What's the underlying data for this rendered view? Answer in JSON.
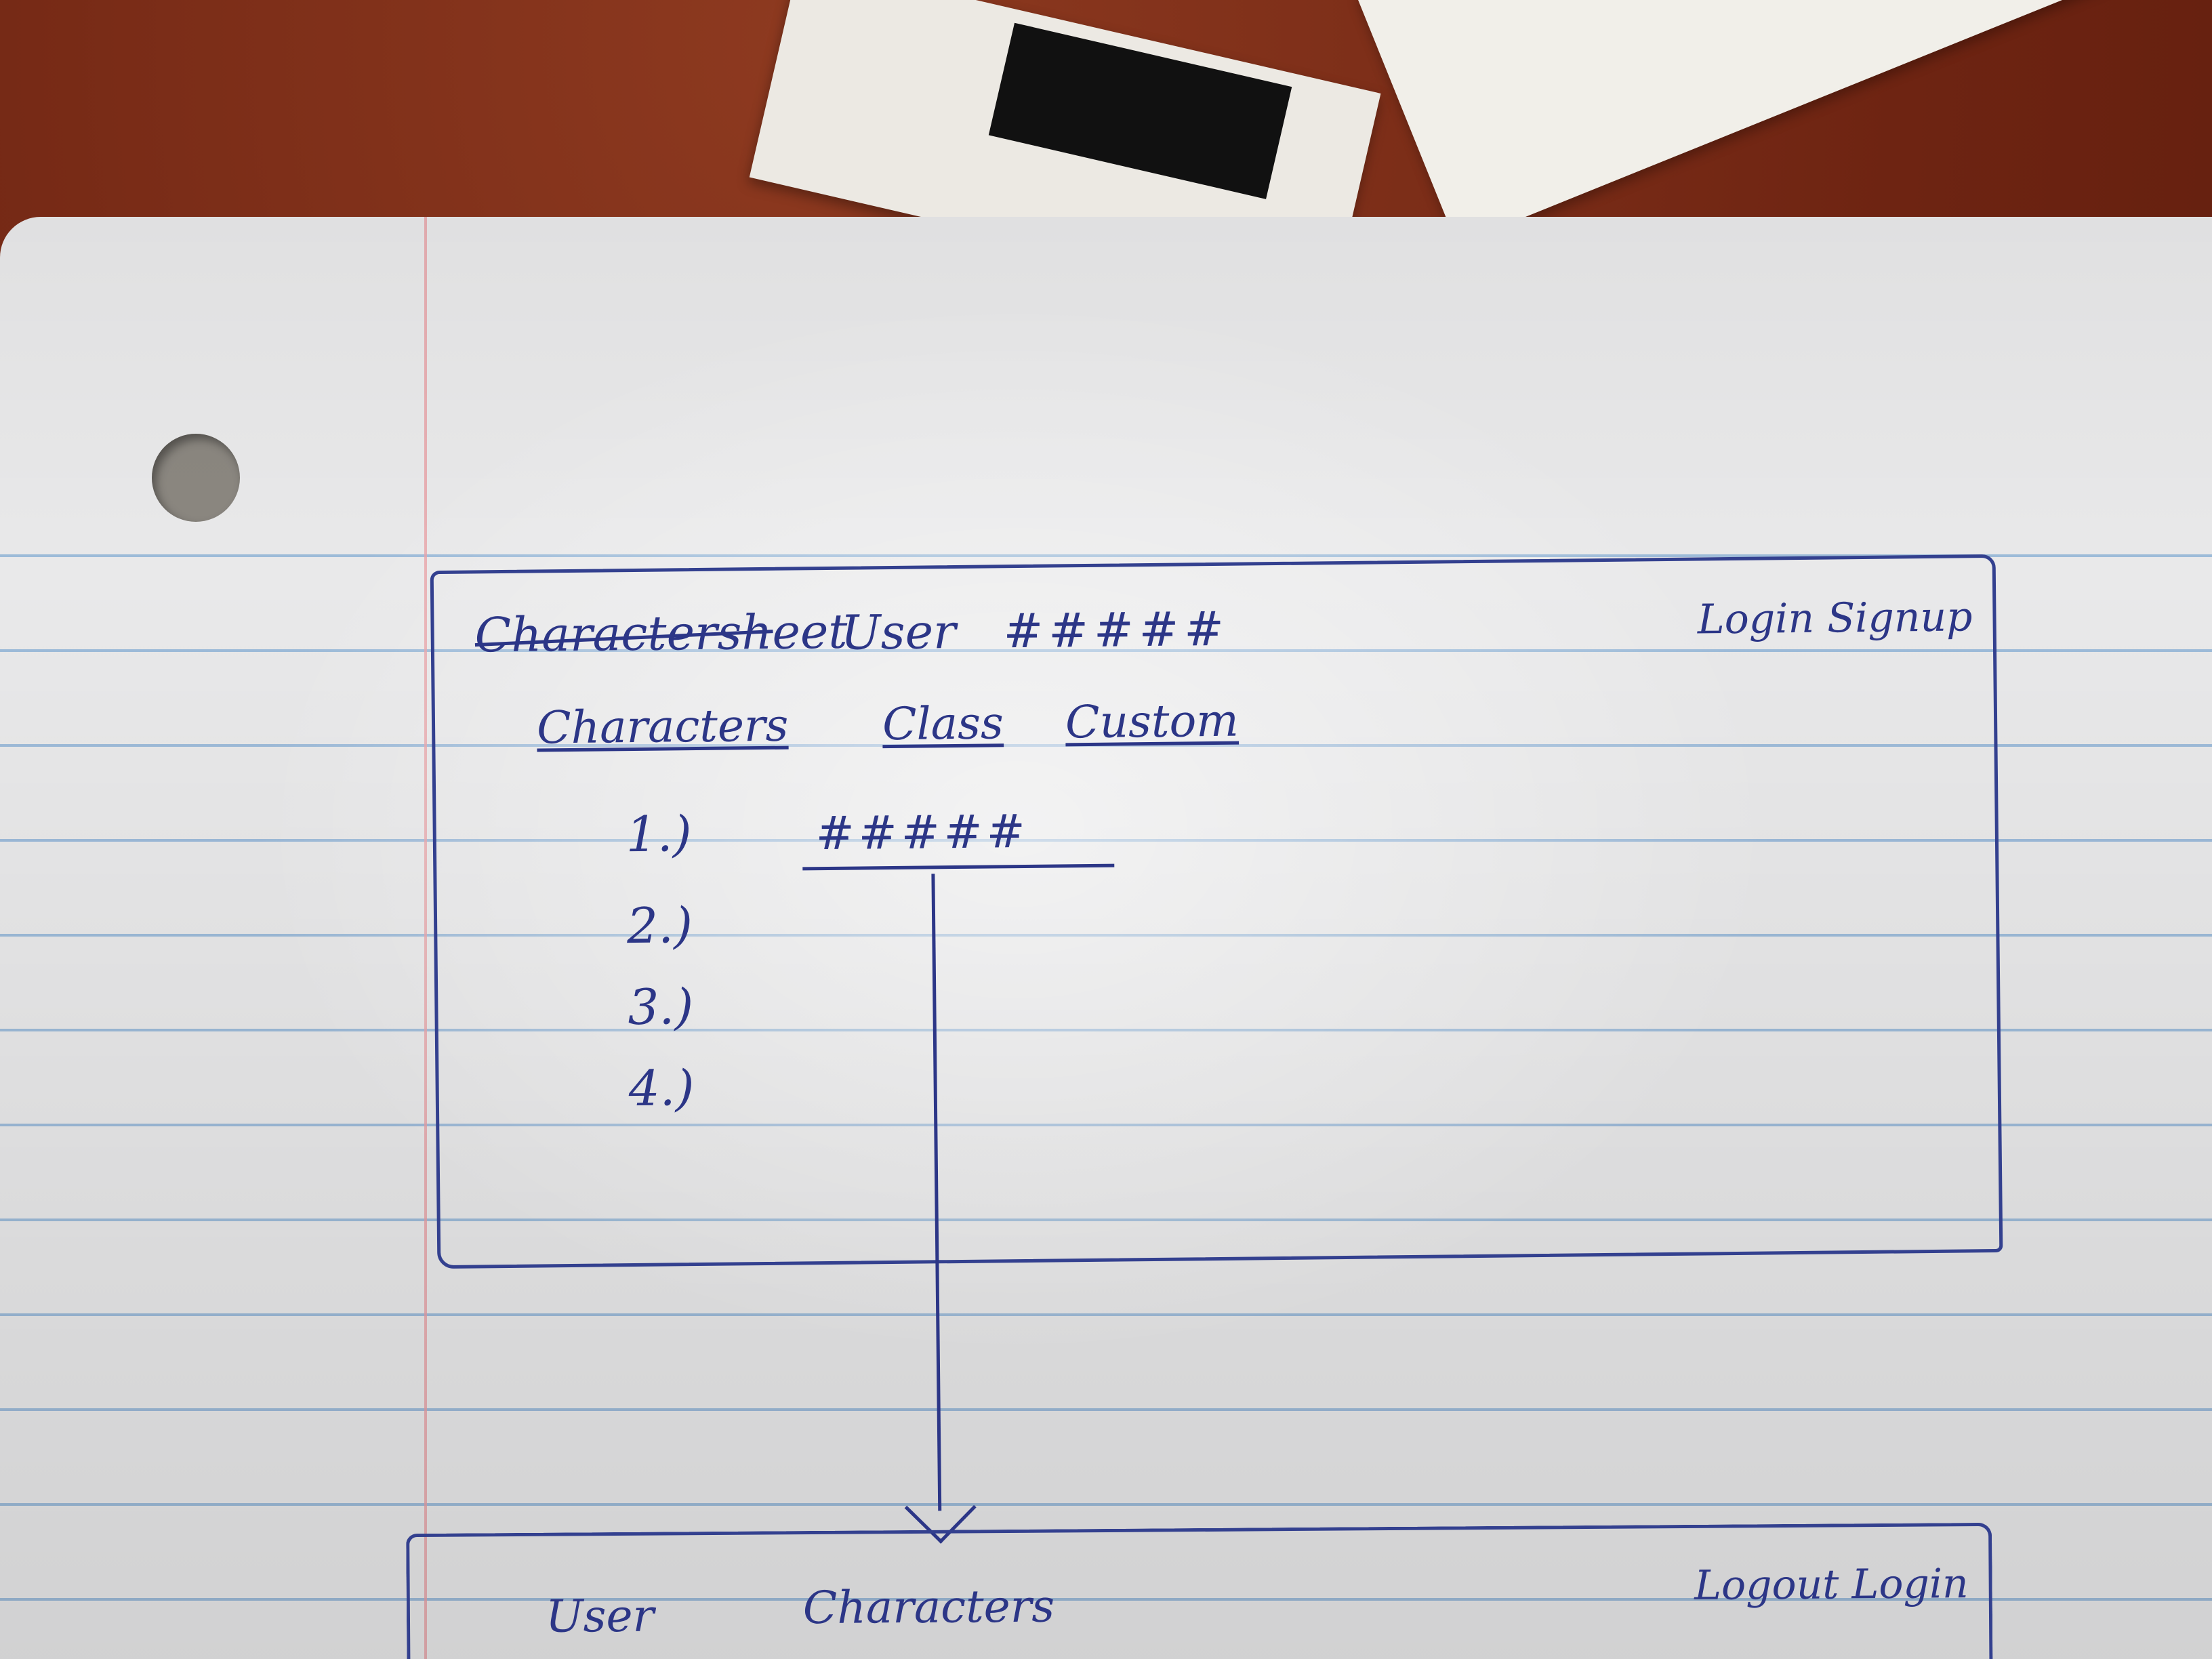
{
  "wireframe_main": {
    "brand": "Charactersheet",
    "user_label": "User",
    "user_id": "#####",
    "auth_links": "Login Signup",
    "nav": [
      "Characters",
      "Class",
      "Custom"
    ],
    "list_numbers": [
      "1.)",
      "2.)",
      "3.)",
      "4.)"
    ],
    "row_value": "#####"
  },
  "wireframe_secondary": {
    "user_label": "User",
    "section_label": "Characters",
    "auth_links": "Logout Login"
  },
  "colors": {
    "ink": "#2c3687",
    "paper": "#e9e9ea",
    "rule_lines": "#8fb3d6",
    "margin_line": "#e7a1a6",
    "desk": "#7a2a16"
  }
}
